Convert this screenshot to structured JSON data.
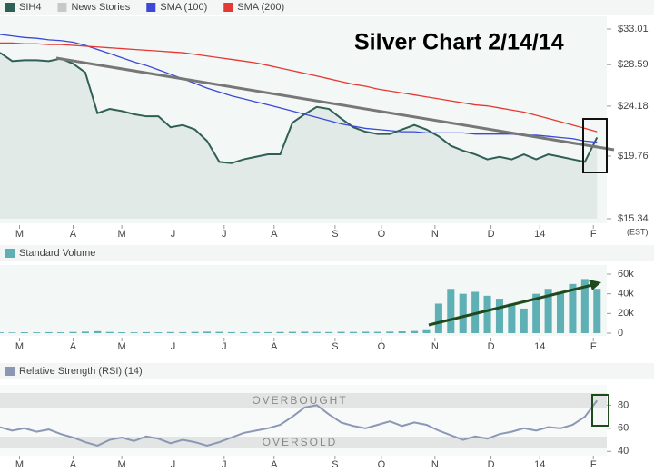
{
  "chart_data": [
    {
      "type": "line",
      "title": "Silver Chart 2/14/14",
      "log_scale": true,
      "x_note": "(EST)",
      "x": [
        0,
        1,
        2,
        3,
        4,
        5,
        6,
        7,
        8,
        9,
        10,
        11,
        12,
        13,
        14,
        15,
        16,
        17,
        18,
        19,
        20,
        21,
        22,
        23,
        24,
        25,
        26,
        27,
        28,
        29,
        30,
        31,
        32,
        33,
        34,
        35,
        36,
        37,
        38,
        39,
        40,
        41,
        42,
        43,
        44,
        45,
        46,
        47,
        48,
        49
      ],
      "xlim": [
        0,
        49.8
      ],
      "xticks": [
        {
          "value": 1.6,
          "label": "M"
        },
        {
          "value": 6.0,
          "label": "A"
        },
        {
          "value": 10.0,
          "label": "M"
        },
        {
          "value": 14.2,
          "label": "J"
        },
        {
          "value": 18.4,
          "label": "J"
        },
        {
          "value": 22.5,
          "label": "A"
        },
        {
          "value": 27.5,
          "label": "S"
        },
        {
          "value": 31.3,
          "label": "O"
        },
        {
          "value": 35.7,
          "label": "N"
        },
        {
          "value": 40.3,
          "label": "D"
        },
        {
          "value": 44.3,
          "label": "14"
        },
        {
          "value": 48.7,
          "label": "F"
        }
      ],
      "ylim": [
        15.34,
        33.01
      ],
      "yticks": [
        {
          "value": 33.01,
          "label": "$33.01"
        },
        {
          "value": 28.59,
          "label": "$28.59"
        },
        {
          "value": 24.18,
          "label": "$24.18"
        },
        {
          "value": 19.76,
          "label": "$19.76"
        },
        {
          "value": 15.34,
          "label": "$15.34"
        }
      ],
      "extra_legend": [
        {
          "name": "News Stories",
          "color": "#c5cac8"
        }
      ],
      "series": [
        {
          "name": "SIH4",
          "color": "#2f5f55",
          "area_color": "#e2eae7",
          "values": [
            30.0,
            29.0,
            29.1,
            29.1,
            29.0,
            29.3,
            28.7,
            27.7,
            23.5,
            23.9,
            23.7,
            23.4,
            23.2,
            23.2,
            22.2,
            22.4,
            22.0,
            21.0,
            19.3,
            19.2,
            19.5,
            19.7,
            19.9,
            19.9,
            22.6,
            23.4,
            24.1,
            23.9,
            23.0,
            22.2,
            21.8,
            21.6,
            21.6,
            22.0,
            22.4,
            22.0,
            21.4,
            20.6,
            20.2,
            19.9,
            19.5,
            19.7,
            19.5,
            19.9,
            19.5,
            19.9,
            19.7,
            19.5,
            19.3,
            21.3
          ]
        },
        {
          "name": "SMA (100)",
          "color": "#3b48d8",
          "values": [
            32.3,
            32.1,
            31.9,
            31.8,
            31.6,
            31.5,
            31.3,
            30.9,
            30.4,
            29.9,
            29.4,
            28.9,
            28.5,
            28.0,
            27.5,
            27.0,
            26.5,
            26.0,
            25.6,
            25.2,
            24.9,
            24.6,
            24.3,
            24.0,
            23.7,
            23.4,
            23.1,
            22.8,
            22.5,
            22.3,
            22.1,
            22.0,
            21.9,
            21.8,
            21.8,
            21.7,
            21.7,
            21.7,
            21.7,
            21.6,
            21.6,
            21.6,
            21.6,
            21.5,
            21.5,
            21.4,
            21.3,
            21.2,
            21.0,
            20.9
          ]
        },
        {
          "name": "SMA (200)",
          "color": "#e53935",
          "values": [
            31.2,
            31.2,
            31.1,
            31.1,
            31.0,
            31.0,
            30.9,
            30.8,
            30.7,
            30.6,
            30.5,
            30.4,
            30.3,
            30.2,
            30.1,
            30.0,
            29.8,
            29.6,
            29.4,
            29.2,
            29.0,
            28.8,
            28.5,
            28.2,
            27.9,
            27.6,
            27.3,
            27.0,
            26.7,
            26.4,
            26.2,
            25.9,
            25.7,
            25.5,
            25.3,
            25.1,
            24.9,
            24.7,
            24.5,
            24.3,
            24.2,
            24.0,
            23.8,
            23.6,
            23.3,
            23.0,
            22.7,
            22.4,
            22.1,
            21.8
          ]
        }
      ]
    },
    {
      "type": "bar",
      "ylim": [
        0,
        60000
      ],
      "yticks": [
        0,
        {
          "value": 20000,
          "label": "20k"
        },
        {
          "value": 40000,
          "label": "40k"
        },
        {
          "value": 60000,
          "label": "60k"
        }
      ],
      "series": [
        {
          "name": "Standard Volume",
          "color": "#5fb0b5",
          "values": [
            800,
            700,
            900,
            800,
            1000,
            900,
            1200,
            1500,
            2000,
            1200,
            900,
            800,
            1000,
            900,
            1100,
            1000,
            1200,
            1500,
            1300,
            1000,
            900,
            1100,
            1000,
            1200,
            1300,
            1400,
            1200,
            1100,
            1300,
            1200,
            1400,
            1300,
            1500,
            1800,
            2200,
            3000,
            30000,
            45000,
            40000,
            42000,
            38000,
            35000,
            30000,
            25000,
            40000,
            45000,
            42000,
            50000,
            55000,
            45000
          ]
        }
      ]
    },
    {
      "type": "line",
      "ylim": [
        30,
        96
      ],
      "yticks": [
        40,
        60,
        80
      ],
      "overbought_label": "OVERBOUGHT",
      "oversold_label": "OVERSOLD",
      "series": [
        {
          "name": "Relative Strength (RSI) (14)",
          "color": "#8b97b5",
          "values": [
            61,
            58,
            60,
            57,
            59,
            55,
            52,
            48,
            45,
            50,
            52,
            49,
            53,
            51,
            47,
            50,
            48,
            45,
            48,
            52,
            56,
            58,
            60,
            63,
            70,
            78,
            80,
            72,
            65,
            62,
            60,
            63,
            66,
            62,
            65,
            63,
            58,
            54,
            50,
            53,
            51,
            55,
            57,
            60,
            58,
            61,
            60,
            63,
            70,
            84
          ]
        }
      ]
    }
  ]
}
